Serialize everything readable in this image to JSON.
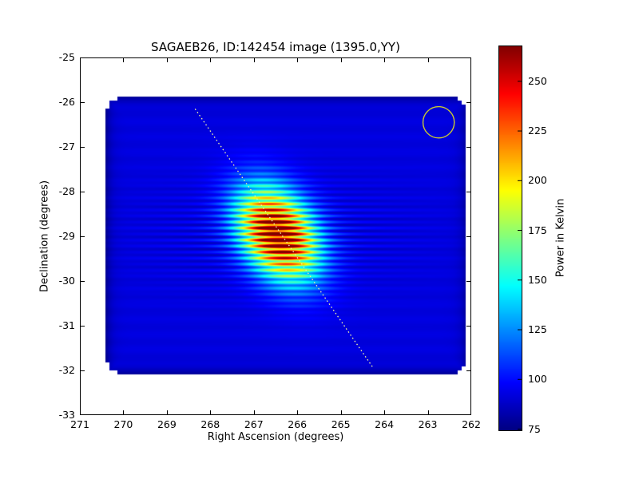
{
  "chart_data": {
    "type": "heatmap",
    "title": "SAGAEB26, ID:142454 image (1395.0,YY)",
    "xlabel": "Right Ascension (degrees)",
    "ylabel": "Declination (degrees)",
    "xlim": [
      271,
      262
    ],
    "ylim": [
      -33,
      -25
    ],
    "x_axis_reversed": true,
    "x_ticks": [
      271,
      270,
      269,
      268,
      267,
      266,
      265,
      264,
      263,
      262
    ],
    "y_ticks": [
      -25,
      -26,
      -27,
      -28,
      -29,
      -30,
      -31,
      -32,
      -33
    ],
    "colormap": "jet",
    "grid": false,
    "colorbar": {
      "label": "Power in Kelvin",
      "ticks": [
        75,
        100,
        125,
        150,
        175,
        200,
        225,
        250
      ],
      "vmin": 74,
      "vmax": 268,
      "orientation": "vertical"
    },
    "background_kelvin": 92,
    "footprint": {
      "ra_min": 262.1,
      "ra_max": 270.4,
      "dec_min": -32.1,
      "dec_max": -25.86,
      "corner_radius": 0.45
    },
    "source": {
      "ra": 266.45,
      "dec": -28.95,
      "peak_kelvin": 268,
      "sigma_along_scan_deg": 0.75,
      "sigma_across_scan_deg": 0.52,
      "stripe_period_deg": 0.135,
      "stripe_amplitude": 0.25
    },
    "scan_line": {
      "ra_start": 268.35,
      "dec_start": -26.15,
      "ra_end": 264.25,
      "dec_end": -31.95,
      "style": "dotted",
      "color": "#ededa8"
    },
    "annotation_circle": {
      "ra": 262.75,
      "dec": -26.45,
      "radius_deg": 0.36,
      "color": "#c8c832"
    }
  }
}
